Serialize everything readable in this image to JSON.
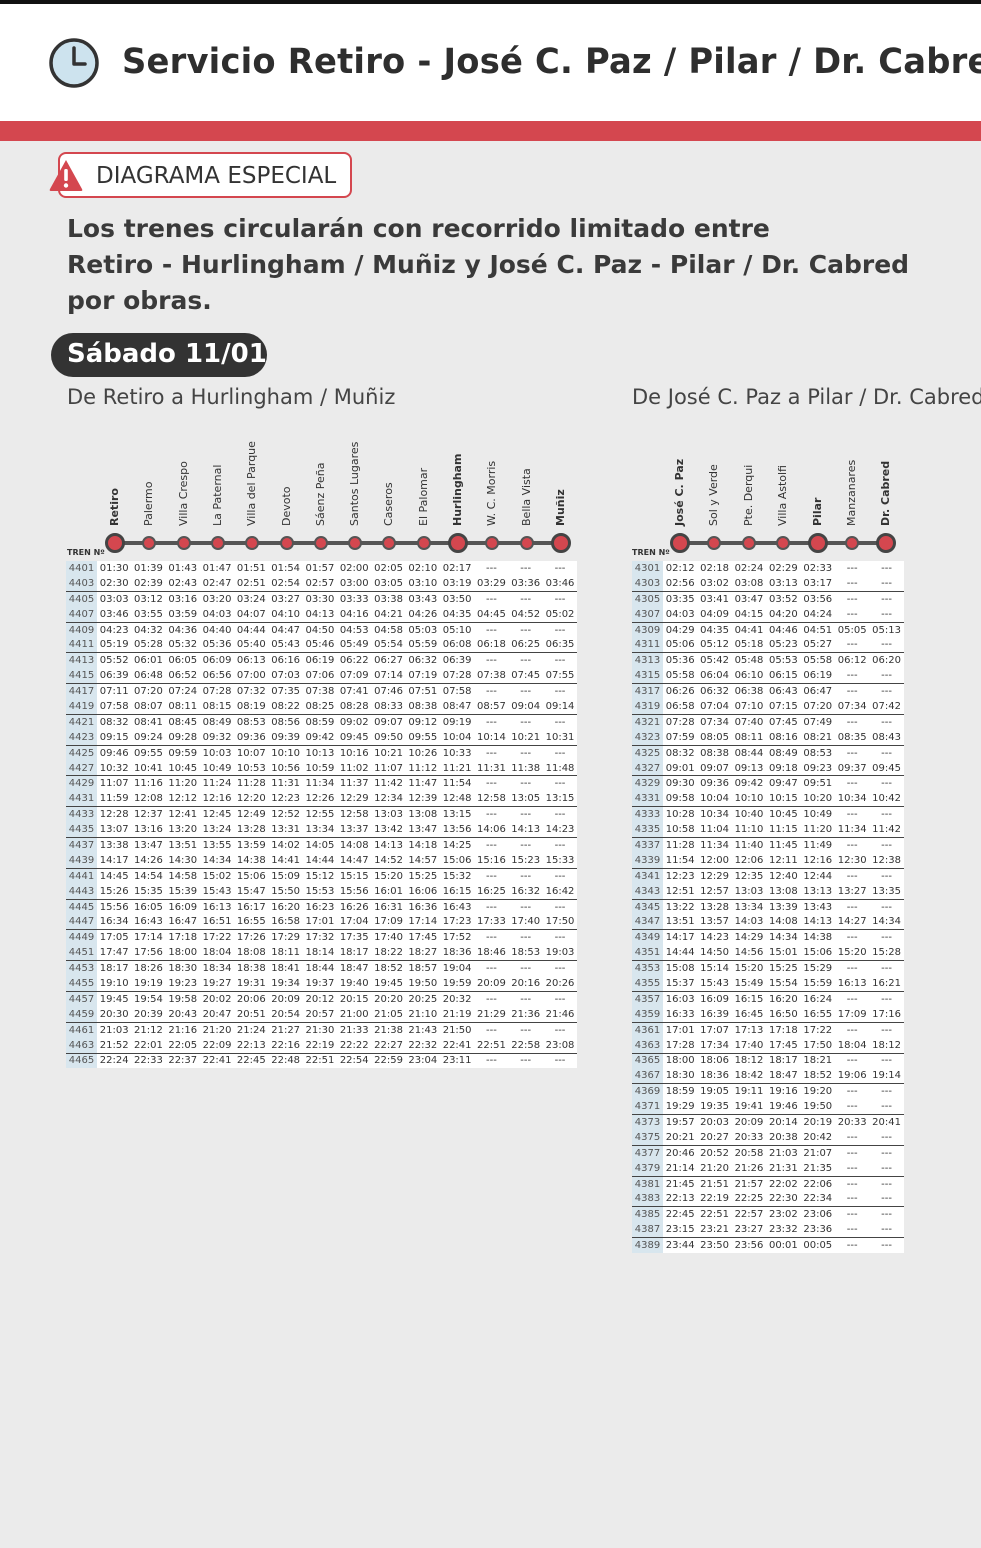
{
  "header": {
    "title": "Servicio Retiro - José C. Paz / Pilar / Dr. Cabred",
    "icon": "clock-icon"
  },
  "badge": {
    "label": "DIAGRAMA ESPECIAL",
    "icon": "warning-icon"
  },
  "notice": {
    "lines": [
      "Los trenes circularán con recorrido limitado entre",
      "Retiro - Hurlingham / Muñiz y José C. Paz - Pilar / Dr. Cabred",
      "por obras."
    ]
  },
  "day": "Sábado 11/01",
  "colors": {
    "accent": "#d4474f",
    "train_cell": "#d8e6ee"
  },
  "left": {
    "title": "De Retiro a Hurlingham / Muñiz",
    "train_label": "TREN Nº",
    "stations": [
      "Retiro",
      "Palermo",
      "Villa Crespo",
      "La Paternal",
      "Villa del Parque",
      "Devoto",
      "Sáenz Peña",
      "Santos Lugares",
      "Caseros",
      "El Palomar",
      "Hurlingham",
      "W. C. Morris",
      "Bella Vista",
      "Muñiz"
    ],
    "bold_stations": [
      0,
      10,
      13
    ],
    "rows": [
      [
        "4401",
        "01:30",
        "01:39",
        "01:43",
        "01:47",
        "01:51",
        "01:54",
        "01:57",
        "02:00",
        "02:05",
        "02:10",
        "02:17",
        "---",
        "---",
        "---"
      ],
      [
        "4403",
        "02:30",
        "02:39",
        "02:43",
        "02:47",
        "02:51",
        "02:54",
        "02:57",
        "03:00",
        "03:05",
        "03:10",
        "03:19",
        "03:29",
        "03:36",
        "03:46"
      ],
      [
        "4405",
        "03:03",
        "03:12",
        "03:16",
        "03:20",
        "03:24",
        "03:27",
        "03:30",
        "03:33",
        "03:38",
        "03:43",
        "03:50",
        "---",
        "---",
        "---"
      ],
      [
        "4407",
        "03:46",
        "03:55",
        "03:59",
        "04:03",
        "04:07",
        "04:10",
        "04:13",
        "04:16",
        "04:21",
        "04:26",
        "04:35",
        "04:45",
        "04:52",
        "05:02"
      ],
      [
        "4409",
        "04:23",
        "04:32",
        "04:36",
        "04:40",
        "04:44",
        "04:47",
        "04:50",
        "04:53",
        "04:58",
        "05:03",
        "05:10",
        "---",
        "---",
        "---"
      ],
      [
        "4411",
        "05:19",
        "05:28",
        "05:32",
        "05:36",
        "05:40",
        "05:43",
        "05:46",
        "05:49",
        "05:54",
        "05:59",
        "06:08",
        "06:18",
        "06:25",
        "06:35"
      ],
      [
        "4413",
        "05:52",
        "06:01",
        "06:05",
        "06:09",
        "06:13",
        "06:16",
        "06:19",
        "06:22",
        "06:27",
        "06:32",
        "06:39",
        "---",
        "---",
        "---"
      ],
      [
        "4415",
        "06:39",
        "06:48",
        "06:52",
        "06:56",
        "07:00",
        "07:03",
        "07:06",
        "07:09",
        "07:14",
        "07:19",
        "07:28",
        "07:38",
        "07:45",
        "07:55"
      ],
      [
        "4417",
        "07:11",
        "07:20",
        "07:24",
        "07:28",
        "07:32",
        "07:35",
        "07:38",
        "07:41",
        "07:46",
        "07:51",
        "07:58",
        "---",
        "---",
        "---"
      ],
      [
        "4419",
        "07:58",
        "08:07",
        "08:11",
        "08:15",
        "08:19",
        "08:22",
        "08:25",
        "08:28",
        "08:33",
        "08:38",
        "08:47",
        "08:57",
        "09:04",
        "09:14"
      ],
      [
        "4421",
        "08:32",
        "08:41",
        "08:45",
        "08:49",
        "08:53",
        "08:56",
        "08:59",
        "09:02",
        "09:07",
        "09:12",
        "09:19",
        "---",
        "---",
        "---"
      ],
      [
        "4423",
        "09:15",
        "09:24",
        "09:28",
        "09:32",
        "09:36",
        "09:39",
        "09:42",
        "09:45",
        "09:50",
        "09:55",
        "10:04",
        "10:14",
        "10:21",
        "10:31"
      ],
      [
        "4425",
        "09:46",
        "09:55",
        "09:59",
        "10:03",
        "10:07",
        "10:10",
        "10:13",
        "10:16",
        "10:21",
        "10:26",
        "10:33",
        "---",
        "---",
        "---"
      ],
      [
        "4427",
        "10:32",
        "10:41",
        "10:45",
        "10:49",
        "10:53",
        "10:56",
        "10:59",
        "11:02",
        "11:07",
        "11:12",
        "11:21",
        "11:31",
        "11:38",
        "11:48"
      ],
      [
        "4429",
        "11:07",
        "11:16",
        "11:20",
        "11:24",
        "11:28",
        "11:31",
        "11:34",
        "11:37",
        "11:42",
        "11:47",
        "11:54",
        "---",
        "---",
        "---"
      ],
      [
        "4431",
        "11:59",
        "12:08",
        "12:12",
        "12:16",
        "12:20",
        "12:23",
        "12:26",
        "12:29",
        "12:34",
        "12:39",
        "12:48",
        "12:58",
        "13:05",
        "13:15"
      ],
      [
        "4433",
        "12:28",
        "12:37",
        "12:41",
        "12:45",
        "12:49",
        "12:52",
        "12:55",
        "12:58",
        "13:03",
        "13:08",
        "13:15",
        "---",
        "---",
        "---"
      ],
      [
        "4435",
        "13:07",
        "13:16",
        "13:20",
        "13:24",
        "13:28",
        "13:31",
        "13:34",
        "13:37",
        "13:42",
        "13:47",
        "13:56",
        "14:06",
        "14:13",
        "14:23"
      ],
      [
        "4437",
        "13:38",
        "13:47",
        "13:51",
        "13:55",
        "13:59",
        "14:02",
        "14:05",
        "14:08",
        "14:13",
        "14:18",
        "14:25",
        "---",
        "---",
        "---"
      ],
      [
        "4439",
        "14:17",
        "14:26",
        "14:30",
        "14:34",
        "14:38",
        "14:41",
        "14:44",
        "14:47",
        "14:52",
        "14:57",
        "15:06",
        "15:16",
        "15:23",
        "15:33"
      ],
      [
        "4441",
        "14:45",
        "14:54",
        "14:58",
        "15:02",
        "15:06",
        "15:09",
        "15:12",
        "15:15",
        "15:20",
        "15:25",
        "15:32",
        "---",
        "---",
        "---"
      ],
      [
        "4443",
        "15:26",
        "15:35",
        "15:39",
        "15:43",
        "15:47",
        "15:50",
        "15:53",
        "15:56",
        "16:01",
        "16:06",
        "16:15",
        "16:25",
        "16:32",
        "16:42"
      ],
      [
        "4445",
        "15:56",
        "16:05",
        "16:09",
        "16:13",
        "16:17",
        "16:20",
        "16:23",
        "16:26",
        "16:31",
        "16:36",
        "16:43",
        "---",
        "---",
        "---"
      ],
      [
        "4447",
        "16:34",
        "16:43",
        "16:47",
        "16:51",
        "16:55",
        "16:58",
        "17:01",
        "17:04",
        "17:09",
        "17:14",
        "17:23",
        "17:33",
        "17:40",
        "17:50"
      ],
      [
        "4449",
        "17:05",
        "17:14",
        "17:18",
        "17:22",
        "17:26",
        "17:29",
        "17:32",
        "17:35",
        "17:40",
        "17:45",
        "17:52",
        "---",
        "---",
        "---"
      ],
      [
        "4451",
        "17:47",
        "17:56",
        "18:00",
        "18:04",
        "18:08",
        "18:11",
        "18:14",
        "18:17",
        "18:22",
        "18:27",
        "18:36",
        "18:46",
        "18:53",
        "19:03"
      ],
      [
        "4453",
        "18:17",
        "18:26",
        "18:30",
        "18:34",
        "18:38",
        "18:41",
        "18:44",
        "18:47",
        "18:52",
        "18:57",
        "19:04",
        "---",
        "---",
        "---"
      ],
      [
        "4455",
        "19:10",
        "19:19",
        "19:23",
        "19:27",
        "19:31",
        "19:34",
        "19:37",
        "19:40",
        "19:45",
        "19:50",
        "19:59",
        "20:09",
        "20:16",
        "20:26"
      ],
      [
        "4457",
        "19:45",
        "19:54",
        "19:58",
        "20:02",
        "20:06",
        "20:09",
        "20:12",
        "20:15",
        "20:20",
        "20:25",
        "20:32",
        "---",
        "---",
        "---"
      ],
      [
        "4459",
        "20:30",
        "20:39",
        "20:43",
        "20:47",
        "20:51",
        "20:54",
        "20:57",
        "21:00",
        "21:05",
        "21:10",
        "21:19",
        "21:29",
        "21:36",
        "21:46"
      ],
      [
        "4461",
        "21:03",
        "21:12",
        "21:16",
        "21:20",
        "21:24",
        "21:27",
        "21:30",
        "21:33",
        "21:38",
        "21:43",
        "21:50",
        "---",
        "---",
        "---"
      ],
      [
        "4463",
        "21:52",
        "22:01",
        "22:05",
        "22:09",
        "22:13",
        "22:16",
        "22:19",
        "22:22",
        "22:27",
        "22:32",
        "22:41",
        "22:51",
        "22:58",
        "23:08"
      ],
      [
        "4465",
        "22:24",
        "22:33",
        "22:37",
        "22:41",
        "22:45",
        "22:48",
        "22:51",
        "22:54",
        "22:59",
        "23:04",
        "23:11",
        "---",
        "---",
        "---"
      ]
    ]
  },
  "right": {
    "title": "De José C. Paz a Pilar / Dr. Cabred",
    "train_label": "TREN Nº",
    "stations": [
      "José C. Paz",
      "Sol y Verde",
      "Pte. Derqui",
      "Villa Astolfi",
      "Pilar",
      "Manzanares",
      "Dr. Cabred"
    ],
    "bold_stations": [
      0,
      4,
      6
    ],
    "rows": [
      [
        "4301",
        "02:12",
        "02:18",
        "02:24",
        "02:29",
        "02:33",
        "---",
        "---"
      ],
      [
        "4303",
        "02:56",
        "03:02",
        "03:08",
        "03:13",
        "03:17",
        "---",
        "---"
      ],
      [
        "4305",
        "03:35",
        "03:41",
        "03:47",
        "03:52",
        "03:56",
        "---",
        "---"
      ],
      [
        "4307",
        "04:03",
        "04:09",
        "04:15",
        "04:20",
        "04:24",
        "---",
        "---"
      ],
      [
        "4309",
        "04:29",
        "04:35",
        "04:41",
        "04:46",
        "04:51",
        "05:05",
        "05:13"
      ],
      [
        "4311",
        "05:06",
        "05:12",
        "05:18",
        "05:23",
        "05:27",
        "---",
        "---"
      ],
      [
        "4313",
        "05:36",
        "05:42",
        "05:48",
        "05:53",
        "05:58",
        "06:12",
        "06:20"
      ],
      [
        "4315",
        "05:58",
        "06:04",
        "06:10",
        "06:15",
        "06:19",
        "---",
        "---"
      ],
      [
        "4317",
        "06:26",
        "06:32",
        "06:38",
        "06:43",
        "06:47",
        "---",
        "---"
      ],
      [
        "4319",
        "06:58",
        "07:04",
        "07:10",
        "07:15",
        "07:20",
        "07:34",
        "07:42"
      ],
      [
        "4321",
        "07:28",
        "07:34",
        "07:40",
        "07:45",
        "07:49",
        "---",
        "---"
      ],
      [
        "4323",
        "07:59",
        "08:05",
        "08:11",
        "08:16",
        "08:21",
        "08:35",
        "08:43"
      ],
      [
        "4325",
        "08:32",
        "08:38",
        "08:44",
        "08:49",
        "08:53",
        "---",
        "---"
      ],
      [
        "4327",
        "09:01",
        "09:07",
        "09:13",
        "09:18",
        "09:23",
        "09:37",
        "09:45"
      ],
      [
        "4329",
        "09:30",
        "09:36",
        "09:42",
        "09:47",
        "09:51",
        "---",
        "---"
      ],
      [
        "4331",
        "09:58",
        "10:04",
        "10:10",
        "10:15",
        "10:20",
        "10:34",
        "10:42"
      ],
      [
        "4333",
        "10:28",
        "10:34",
        "10:40",
        "10:45",
        "10:49",
        "---",
        "---"
      ],
      [
        "4335",
        "10:58",
        "11:04",
        "11:10",
        "11:15",
        "11:20",
        "11:34",
        "11:42"
      ],
      [
        "4337",
        "11:28",
        "11:34",
        "11:40",
        "11:45",
        "11:49",
        "---",
        "---"
      ],
      [
        "4339",
        "11:54",
        "12:00",
        "12:06",
        "12:11",
        "12:16",
        "12:30",
        "12:38"
      ],
      [
        "4341",
        "12:23",
        "12:29",
        "12:35",
        "12:40",
        "12:44",
        "---",
        "---"
      ],
      [
        "4343",
        "12:51",
        "12:57",
        "13:03",
        "13:08",
        "13:13",
        "13:27",
        "13:35"
      ],
      [
        "4345",
        "13:22",
        "13:28",
        "13:34",
        "13:39",
        "13:43",
        "---",
        "---"
      ],
      [
        "4347",
        "13:51",
        "13:57",
        "14:03",
        "14:08",
        "14:13",
        "14:27",
        "14:34"
      ],
      [
        "4349",
        "14:17",
        "14:23",
        "14:29",
        "14:34",
        "14:38",
        "---",
        "---"
      ],
      [
        "4351",
        "14:44",
        "14:50",
        "14:56",
        "15:01",
        "15:06",
        "15:20",
        "15:28"
      ],
      [
        "4353",
        "15:08",
        "15:14",
        "15:20",
        "15:25",
        "15:29",
        "---",
        "---"
      ],
      [
        "4355",
        "15:37",
        "15:43",
        "15:49",
        "15:54",
        "15:59",
        "16:13",
        "16:21"
      ],
      [
        "4357",
        "16:03",
        "16:09",
        "16:15",
        "16:20",
        "16:24",
        "---",
        "---"
      ],
      [
        "4359",
        "16:33",
        "16:39",
        "16:45",
        "16:50",
        "16:55",
        "17:09",
        "17:16"
      ],
      [
        "4361",
        "17:01",
        "17:07",
        "17:13",
        "17:18",
        "17:22",
        "---",
        "---"
      ],
      [
        "4363",
        "17:28",
        "17:34",
        "17:40",
        "17:45",
        "17:50",
        "18:04",
        "18:12"
      ],
      [
        "4365",
        "18:00",
        "18:06",
        "18:12",
        "18:17",
        "18:21",
        "---",
        "---"
      ],
      [
        "4367",
        "18:30",
        "18:36",
        "18:42",
        "18:47",
        "18:52",
        "19:06",
        "19:14"
      ],
      [
        "4369",
        "18:59",
        "19:05",
        "19:11",
        "19:16",
        "19:20",
        "---",
        "---"
      ],
      [
        "4371",
        "19:29",
        "19:35",
        "19:41",
        "19:46",
        "19:50",
        "---",
        "---"
      ],
      [
        "4373",
        "19:57",
        "20:03",
        "20:09",
        "20:14",
        "20:19",
        "20:33",
        "20:41"
      ],
      [
        "4375",
        "20:21",
        "20:27",
        "20:33",
        "20:38",
        "20:42",
        "---",
        "---"
      ],
      [
        "4377",
        "20:46",
        "20:52",
        "20:58",
        "21:03",
        "21:07",
        "---",
        "---"
      ],
      [
        "4379",
        "21:14",
        "21:20",
        "21:26",
        "21:31",
        "21:35",
        "---",
        "---"
      ],
      [
        "4381",
        "21:45",
        "21:51",
        "21:57",
        "22:02",
        "22:06",
        "---",
        "---"
      ],
      [
        "4383",
        "22:13",
        "22:19",
        "22:25",
        "22:30",
        "22:34",
        "---",
        "---"
      ],
      [
        "4385",
        "22:45",
        "22:51",
        "22:57",
        "23:02",
        "23:06",
        "---",
        "---"
      ],
      [
        "4387",
        "23:15",
        "23:21",
        "23:27",
        "23:32",
        "23:36",
        "---",
        "---"
      ],
      [
        "4389",
        "23:44",
        "23:50",
        "23:56",
        "00:01",
        "00:05",
        "---",
        "---"
      ]
    ]
  }
}
